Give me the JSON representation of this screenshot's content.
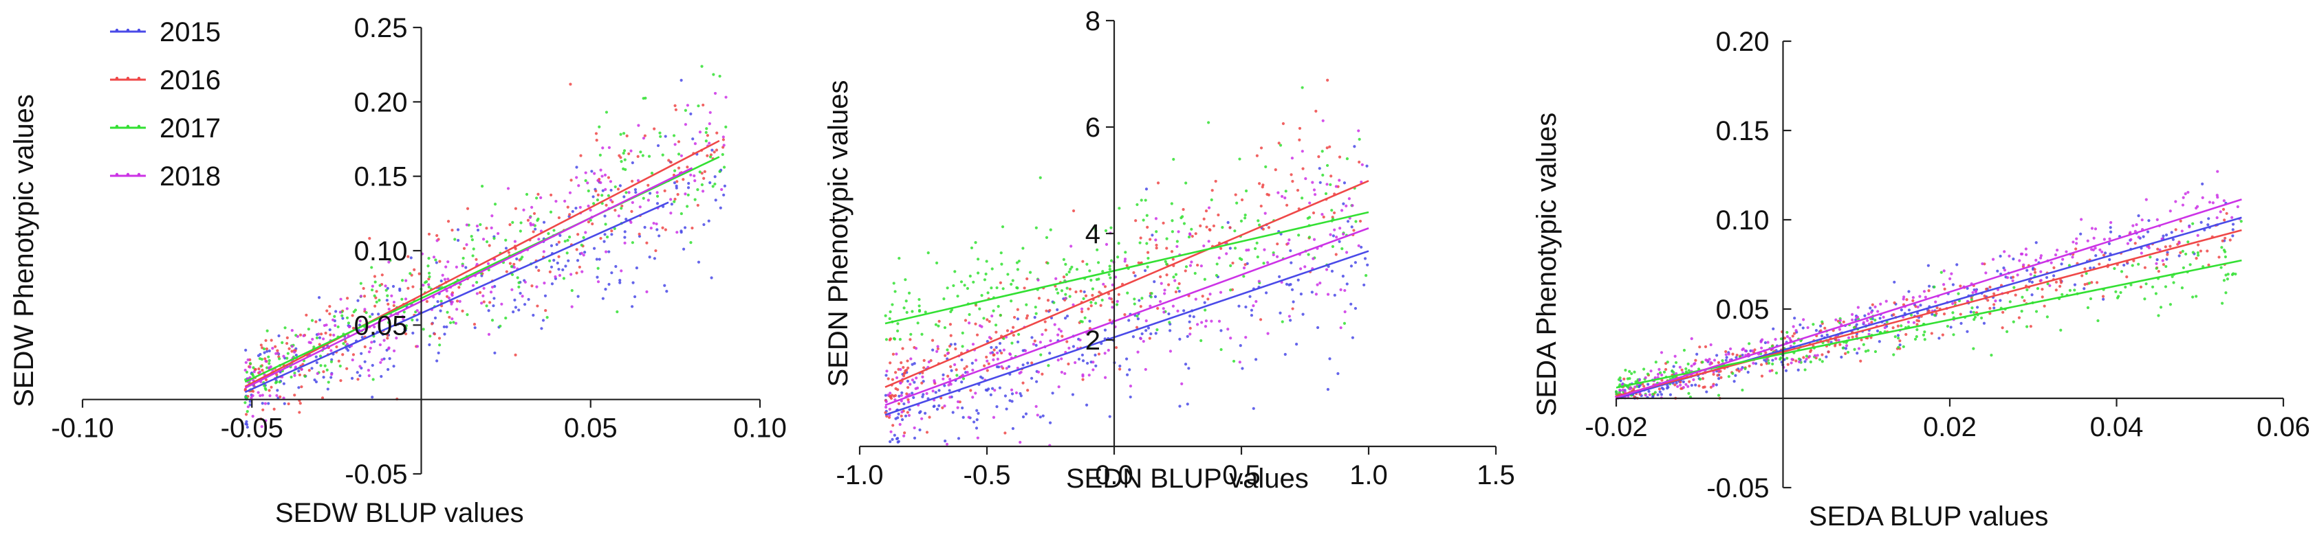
{
  "colors": {
    "2015": "#4a4ae8",
    "2016": "#ef4848",
    "2017": "#33e033",
    "2018": "#cc33e6",
    "axis": "#222222"
  },
  "legend": [
    "2015",
    "2016",
    "2017",
    "2018"
  ],
  "chart_data": [
    {
      "type": "scatter",
      "title": "",
      "xlabel": "SEDW BLUP values",
      "ylabel": "SEDW Phenotypic values",
      "xlim": [
        -0.1,
        0.1
      ],
      "ylim": [
        -0.05,
        0.25
      ],
      "xticks": [
        -0.1,
        -0.05,
        0.05,
        0.1
      ],
      "xtick_labels": [
        "-0.10",
        "-0.05",
        "0.05",
        "0.10"
      ],
      "yticks": [
        -0.05,
        0.05,
        0.1,
        0.15,
        0.2,
        0.25
      ],
      "ytick_labels": [
        "-0.05",
        "0.05",
        "0.10",
        "0.15",
        "0.20",
        "0.25"
      ],
      "x_range": [
        -0.052,
        0.09
      ],
      "y_min": -0.02,
      "noise_sd": 0.022,
      "series": [
        {
          "name": "2015",
          "slope": 1.02,
          "intercept": 0.058,
          "x_end": 0.073
        },
        {
          "name": "2016",
          "slope": 1.18,
          "intercept": 0.07,
          "x_end": 0.088
        },
        {
          "name": "2017",
          "slope": 1.08,
          "intercept": 0.068,
          "x_end": 0.088
        },
        {
          "name": "2018",
          "slope": 1.12,
          "intercept": 0.066,
          "x_end": 0.08
        }
      ]
    },
    {
      "type": "scatter",
      "title": "",
      "xlabel": "SEDN BLUP values",
      "ylabel": "SEDN Phenotypic values",
      "xlim": [
        -1.0,
        1.5
      ],
      "ylim": [
        0,
        8
      ],
      "xticks": [
        -1.0,
        -0.5,
        0.0,
        0.5,
        1.0,
        1.5
      ],
      "xtick_labels": [
        "-1.0",
        "-0.5",
        "0.0",
        "0.5",
        "1.0",
        "1.5"
      ],
      "yticks": [
        2,
        4,
        6,
        8
      ],
      "ytick_labels": [
        "2",
        "4",
        "6",
        "8"
      ],
      "x_range": [
        -0.9,
        1.0
      ],
      "y_min": 0,
      "noise_sd": 0.75,
      "series": [
        {
          "name": "2015",
          "slope": 1.62,
          "intercept": 2.05,
          "x_end": 1.0
        },
        {
          "name": "2016",
          "slope": 2.04,
          "intercept": 2.95,
          "x_end": 1.0
        },
        {
          "name": "2017",
          "slope": 1.1,
          "intercept": 3.3,
          "x_end": 1.0
        },
        {
          "name": "2018",
          "slope": 1.75,
          "intercept": 2.35,
          "x_end": 1.0
        }
      ]
    },
    {
      "type": "scatter",
      "title": "",
      "xlabel": "SEDA BLUP values",
      "ylabel": "SEDA Phenotypic values",
      "xlim": [
        -0.02,
        0.06
      ],
      "ylim": [
        -0.05,
        0.2
      ],
      "xticks": [
        -0.02,
        0.02,
        0.04,
        0.06
      ],
      "xtick_labels": [
        "-0.02",
        "0.02",
        "0.04",
        "0.06"
      ],
      "yticks": [
        -0.05,
        0.05,
        0.1,
        0.15,
        0.2
      ],
      "ytick_labels": [
        "-0.05",
        "0.05",
        "0.10",
        "0.15",
        "0.20"
      ],
      "x_range": [
        -0.02,
        0.055
      ],
      "y_min": 0,
      "noise_sd": 0.008,
      "series": [
        {
          "name": "2015",
          "slope": 1.35,
          "intercept": 0.027,
          "x_end": 0.055
        },
        {
          "name": "2016",
          "slope": 1.24,
          "intercept": 0.026,
          "x_end": 0.055
        },
        {
          "name": "2017",
          "slope": 0.95,
          "intercept": 0.025,
          "x_end": 0.055
        },
        {
          "name": "2018",
          "slope": 1.48,
          "intercept": 0.03,
          "x_end": 0.055
        }
      ]
    }
  ]
}
